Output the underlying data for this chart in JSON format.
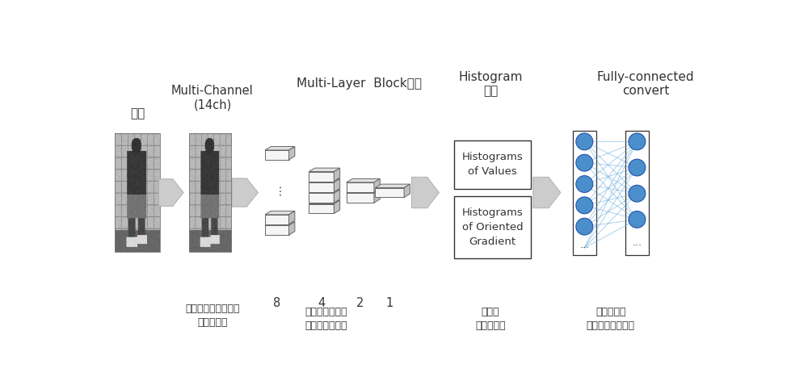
{
  "bg_color": "#ffffff",
  "step1_title": "入力",
  "step2_title": "Multi-Channel\n(14ch)",
  "step2_sub": "場所やカメラ設定の\n違いを吸収",
  "step3_title": "Multi-Layer  Block分割",
  "step3_sub": "自動検出による\n位置ずれを吸収",
  "step3_numbers": [
    "8",
    "4",
    "2",
    "1"
  ],
  "step4_title": "Histogram\n特徴",
  "step4_box1": "Histograms\nof Values",
  "step4_box2": "Histograms\nof Oriented\nGradient",
  "step4_sub": "姿勢の\n違いを吸収",
  "step5_title": "Fully-connected\nconvert",
  "step5_sub": "同一人物が\n類似するよう変換",
  "arrow_color": "#cccccc",
  "box_color": "#ffffff",
  "box_edge": "#333333",
  "node_color": "#4a8fcc",
  "node_edge": "#2255aa",
  "line_color": "#66aadd",
  "block_face": "#f5f5f5",
  "block_edge": "#666666",
  "block_side": "#c0c0c0",
  "block_top": "#e0e0e0"
}
